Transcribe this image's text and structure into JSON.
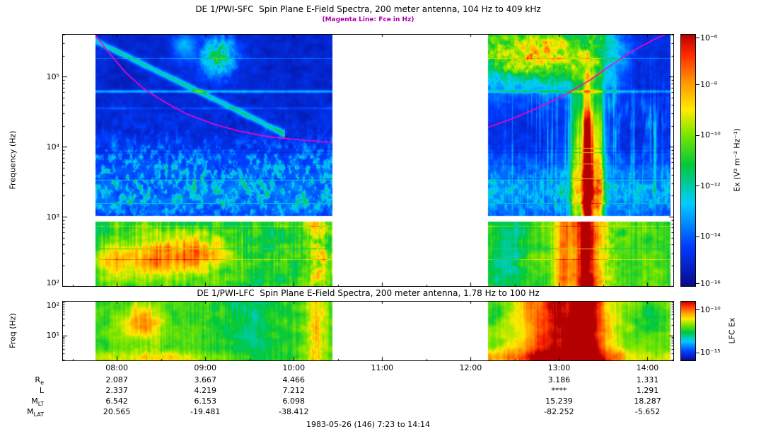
{
  "header": {
    "subtitle": "(Magenta Line: Fce in Hz)",
    "subtitle_color": "#a800a8"
  },
  "footer": "1983-05-26 (146) 7:23 to 14:14",
  "time_axis": {
    "tick_labels": [
      "08:00",
      "09:00",
      "10:00",
      "11:00",
      "12:00",
      "13:00",
      "14:00"
    ],
    "tick_hours": [
      8,
      9,
      10,
      11,
      12,
      13,
      14
    ],
    "start_hour": 7.383,
    "end_hour": 14.3,
    "data_segments_hours": [
      [
        7.76,
        10.44
      ],
      [
        12.2,
        14.26
      ]
    ]
  },
  "colormap": {
    "stops": [
      {
        "v": 0.0,
        "color": "#08088c"
      },
      {
        "v": 0.16,
        "color": "#003cff"
      },
      {
        "v": 0.33,
        "color": "#00cdff"
      },
      {
        "v": 0.48,
        "color": "#00c83c"
      },
      {
        "v": 0.6,
        "color": "#78e600"
      },
      {
        "v": 0.7,
        "color": "#ffeb00"
      },
      {
        "v": 0.82,
        "color": "#ff8c00"
      },
      {
        "v": 0.92,
        "color": "#ff2800"
      },
      {
        "v": 1.0,
        "color": "#b40000"
      }
    ]
  },
  "chart_data": [
    {
      "type": "heatmap",
      "name": "sfc-spectrogram",
      "title": "DE 1/PWI-SFC  Spin Plane E-Field Spectra, 200 meter antenna, 104 Hz to 409 kHz",
      "ylabel": "Frequency (Hz)",
      "ylim_hz": [
        100,
        409000
      ],
      "ytick_labels": [
        "10⁵",
        "10⁴",
        "10³",
        "10²"
      ],
      "ytick_exponents": [
        5,
        4,
        3,
        2
      ],
      "white_gap_hz": [
        850,
        1020
      ],
      "colorbar": {
        "label": "Ex (V² m⁻² Hz⁻¹)",
        "tick_labels": [
          "10⁻⁶",
          "10⁻⁸",
          "10⁻¹⁰",
          "10⁻¹²",
          "10⁻¹⁴",
          "10⁻¹⁶"
        ],
        "tick_exponents": [
          -6,
          -8,
          -10,
          -12,
          -14,
          -16
        ],
        "range_exponents": [
          -6,
          -16
        ]
      },
      "fce_line": {
        "color": "#ff00cc",
        "points_hour_hz": [
          [
            7.76,
            390000
          ],
          [
            7.9,
            230000
          ],
          [
            8.1,
            115000
          ],
          [
            8.3,
            68000
          ],
          [
            8.55,
            43000
          ],
          [
            8.8,
            29000
          ],
          [
            9.1,
            21000
          ],
          [
            9.4,
            16500
          ],
          [
            9.7,
            14000
          ],
          [
            10.0,
            12800
          ],
          [
            10.44,
            11500
          ],
          [
            12.2,
            19000
          ],
          [
            12.5,
            26000
          ],
          [
            12.8,
            38000
          ],
          [
            13.1,
            58000
          ],
          [
            13.35,
            90000
          ],
          [
            13.6,
            150000
          ],
          [
            13.85,
            240000
          ],
          [
            14.05,
            330000
          ],
          [
            14.2,
            405000
          ]
        ]
      }
    },
    {
      "type": "heatmap",
      "name": "lfc-spectrogram",
      "title": "DE 1/PWI-LFC  Spin Plane E-Field Spectra, 200 meter antenna, 1.78 Hz to 100 Hz",
      "ylabel": "Freq (Hz)",
      "ylim_hz": [
        1.78,
        100
      ],
      "ytick_labels": [
        "10²",
        "10¹"
      ],
      "ytick_exponents": [
        2,
        1
      ],
      "colorbar": {
        "label": "LFC Ex",
        "tick_labels": [
          "10⁻¹⁰",
          "10⁻¹⁵"
        ],
        "tick_exponents": [
          -10,
          -15
        ],
        "range_exponents": [
          -9,
          -16
        ]
      }
    }
  ],
  "ephemeris": {
    "rows": [
      {
        "key": "Re",
        "label": "R",
        "sub": "e",
        "values": [
          "2.087",
          "3.667",
          "4.466",
          "",
          "",
          "3.186",
          "1.331"
        ]
      },
      {
        "key": "L",
        "label": "L",
        "sub": "",
        "values": [
          "2.337",
          "4.219",
          "7.212",
          "",
          "",
          "****",
          "1.291"
        ]
      },
      {
        "key": "MLT",
        "label": "M",
        "sub": "LT",
        "values": [
          "6.542",
          "6.153",
          "6.098",
          "",
          "",
          "15.239",
          "18.287"
        ]
      },
      {
        "key": "MLAT",
        "label": "M",
        "sub": "LAT",
        "values": [
          "20.565",
          "-19.481",
          "-38.412",
          "",
          "",
          "-82.252",
          "-5.652"
        ]
      }
    ]
  }
}
